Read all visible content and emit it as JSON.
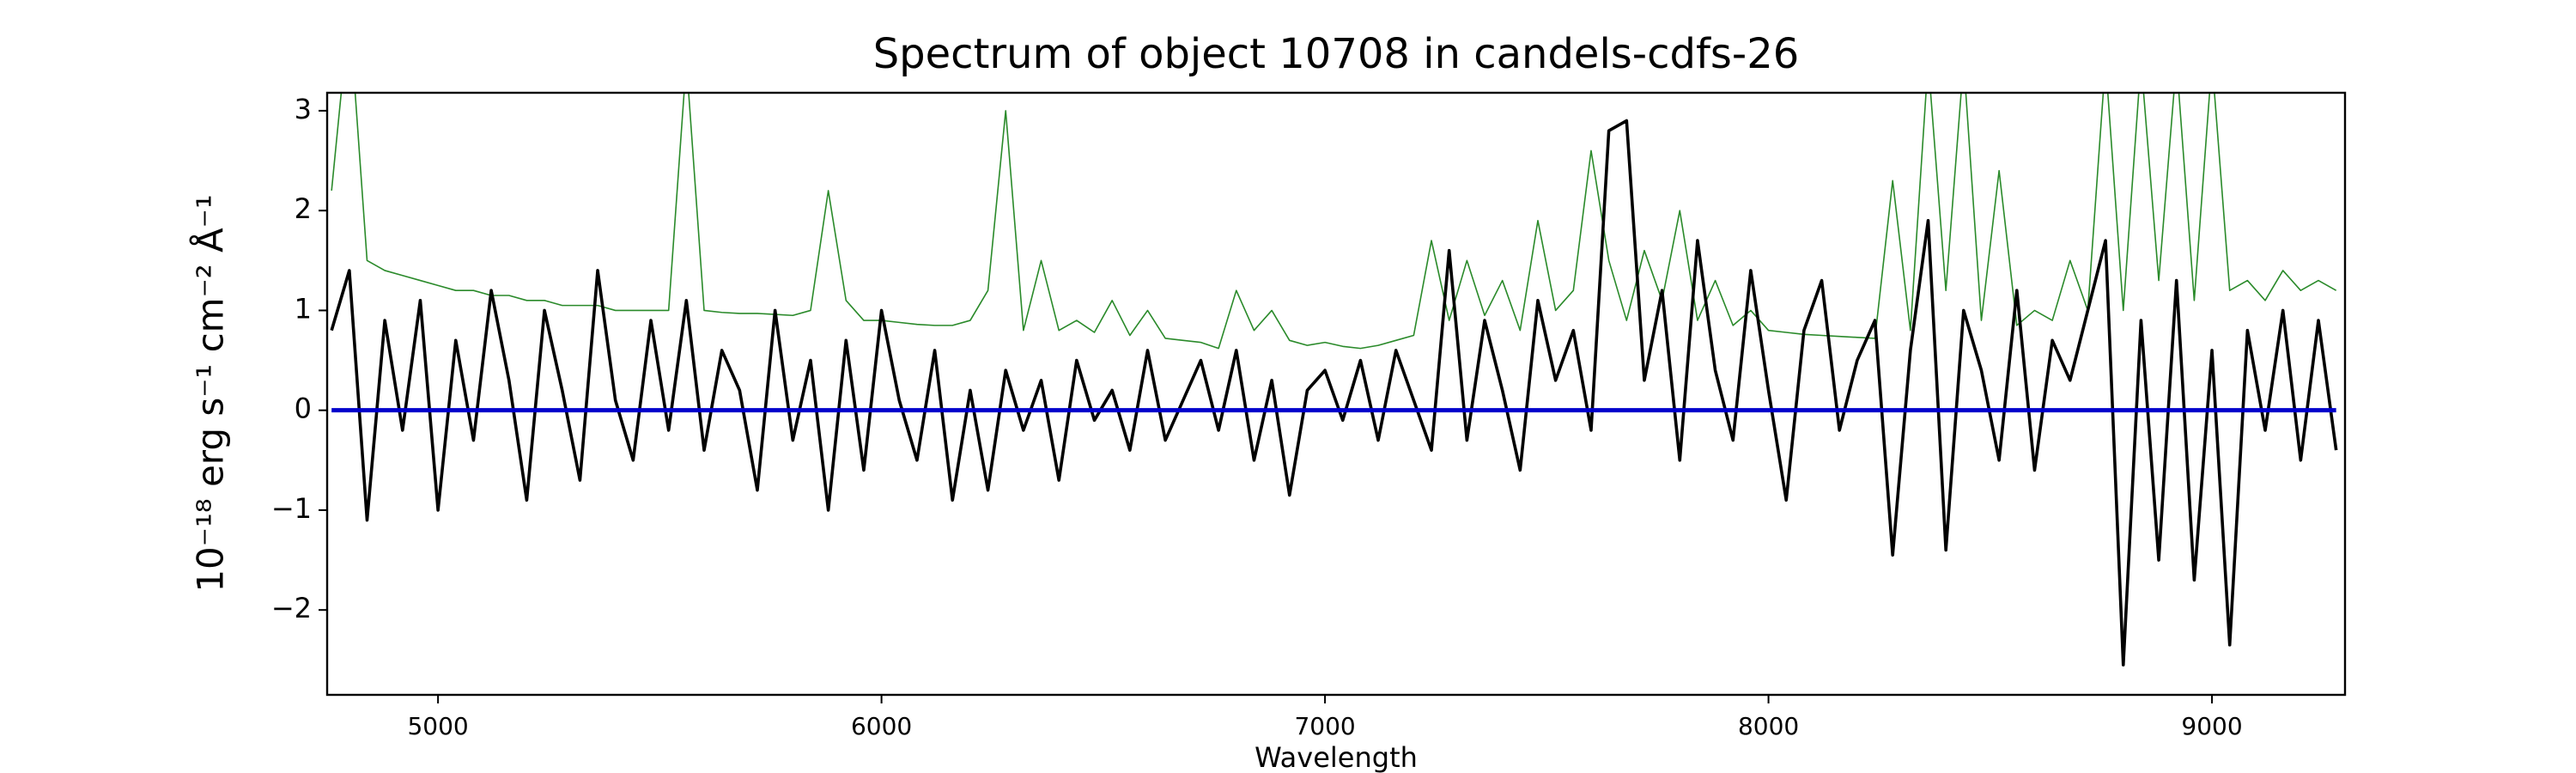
{
  "chart_data": {
    "type": "line",
    "title": "Spectrum of object 10708 in candels-cdfs-26",
    "xlabel": "Wavelength",
    "ylabel": "10⁻¹⁸ erg s⁻¹ cm⁻² Å⁻¹",
    "xlim": [
      4750,
      9300
    ],
    "ylim": [
      -2.85,
      3.18
    ],
    "xticks": [
      5000,
      6000,
      7000,
      8000,
      9000
    ],
    "yticks": [
      {
        "value": -2,
        "label": "−2"
      },
      {
        "value": -1,
        "label": "−1"
      },
      0,
      1,
      2,
      3
    ],
    "x": [
      4760,
      4800,
      4840,
      4880,
      4920,
      4960,
      5000,
      5040,
      5080,
      5120,
      5160,
      5200,
      5240,
      5280,
      5320,
      5360,
      5400,
      5440,
      5480,
      5520,
      5560,
      5600,
      5640,
      5680,
      5720,
      5760,
      5800,
      5840,
      5880,
      5920,
      5960,
      6000,
      6040,
      6080,
      6120,
      6160,
      6200,
      6240,
      6280,
      6320,
      6360,
      6400,
      6440,
      6480,
      6520,
      6560,
      6600,
      6640,
      6680,
      6720,
      6760,
      6800,
      6840,
      6880,
      6920,
      6960,
      7000,
      7040,
      7080,
      7120,
      7160,
      7200,
      7240,
      7280,
      7320,
      7360,
      7400,
      7440,
      7480,
      7520,
      7560,
      7600,
      7640,
      7680,
      7720,
      7760,
      7800,
      7840,
      7880,
      7920,
      7960,
      8000,
      8040,
      8080,
      8120,
      8160,
      8200,
      8240,
      8280,
      8320,
      8360,
      8400,
      8440,
      8480,
      8520,
      8560,
      8600,
      8640,
      8680,
      8720,
      8760,
      8800,
      8840,
      8880,
      8920,
      8960,
      9000,
      9040,
      9080,
      9120,
      9160,
      9200,
      9240,
      9280
    ],
    "series": [
      {
        "color": "#2a8a2a",
        "values": [
          2.2,
          4.0,
          1.5,
          1.4,
          1.35,
          1.3,
          1.25,
          1.2,
          1.2,
          1.15,
          1.15,
          1.1,
          1.1,
          1.05,
          1.05,
          1.05,
          1.0,
          1.0,
          1.0,
          1.0,
          3.5,
          1.0,
          0.98,
          0.97,
          0.97,
          0.96,
          0.95,
          1.0,
          2.2,
          1.1,
          0.9,
          0.9,
          0.88,
          0.86,
          0.85,
          0.85,
          0.9,
          1.2,
          3.0,
          0.8,
          1.5,
          0.8,
          0.9,
          0.78,
          1.1,
          0.75,
          1.0,
          0.72,
          0.7,
          0.68,
          0.62,
          1.2,
          0.8,
          1.0,
          0.7,
          0.65,
          0.68,
          0.64,
          0.62,
          0.65,
          0.7,
          0.75,
          1.7,
          0.9,
          1.5,
          0.95,
          1.3,
          0.8,
          1.9,
          1.0,
          1.2,
          2.6,
          1.5,
          0.9,
          1.6,
          1.1,
          2.0,
          0.9,
          1.3,
          0.85,
          1.0,
          0.8,
          0.78,
          0.76,
          0.75,
          0.74,
          0.73,
          0.72,
          2.3,
          0.8,
          3.5,
          1.2,
          3.5,
          0.9,
          2.4,
          0.85,
          1.0,
          0.9,
          1.5,
          1.0,
          3.5,
          1.0,
          3.5,
          1.3,
          3.5,
          1.1,
          3.5,
          1.2,
          1.3,
          1.1,
          1.4,
          1.2,
          1.3,
          1.2
        ],
        "width": 1.6
      },
      {
        "color": "#000000",
        "values": [
          0.8,
          1.4,
          -1.1,
          0.9,
          -0.2,
          1.1,
          -1.0,
          0.7,
          -0.3,
          1.2,
          0.3,
          -0.9,
          1.0,
          0.2,
          -0.7,
          1.4,
          0.1,
          -0.5,
          0.9,
          -0.2,
          1.1,
          -0.4,
          0.6,
          0.2,
          -0.8,
          1.0,
          -0.3,
          0.5,
          -1.0,
          0.7,
          -0.6,
          1.0,
          0.1,
          -0.5,
          0.6,
          -0.9,
          0.2,
          -0.8,
          0.4,
          -0.2,
          0.3,
          -0.7,
          0.5,
          -0.1,
          0.2,
          -0.4,
          0.6,
          -0.3,
          0.1,
          0.5,
          -0.2,
          0.6,
          -0.5,
          0.3,
          -0.85,
          0.2,
          0.4,
          -0.1,
          0.5,
          -0.3,
          0.6,
          0.1,
          -0.4,
          1.6,
          -0.3,
          0.9,
          0.2,
          -0.6,
          1.1,
          0.3,
          0.8,
          -0.2,
          2.8,
          2.9,
          0.3,
          1.2,
          -0.5,
          1.7,
          0.4,
          -0.3,
          1.4,
          0.2,
          -0.9,
          0.8,
          1.3,
          -0.2,
          0.5,
          0.9,
          -1.45,
          0.6,
          1.9,
          -1.4,
          1.0,
          0.4,
          -0.5,
          1.2,
          -0.6,
          0.7,
          0.3,
          1.0,
          1.7,
          -2.55,
          0.9,
          -1.5,
          1.3,
          -1.7,
          0.6,
          -2.35,
          0.8,
          -0.2,
          1.0,
          -0.5,
          0.9,
          -0.4
        ],
        "width": 3.6
      },
      {
        "color": "#0000cc",
        "values": [
          0,
          0,
          0,
          0,
          0,
          0,
          0,
          0,
          0,
          0,
          0,
          0,
          0,
          0,
          0,
          0,
          0,
          0,
          0,
          0,
          0,
          0,
          0,
          0,
          0,
          0,
          0,
          0,
          0,
          0,
          0,
          0,
          0,
          0,
          0,
          0,
          0,
          0,
          0,
          0,
          0,
          0,
          0,
          0,
          0,
          0,
          0,
          0,
          0,
          0,
          0,
          0,
          0,
          0,
          0,
          0,
          0,
          0,
          0,
          0,
          0,
          0,
          0,
          0,
          0,
          0,
          0,
          0,
          0,
          0,
          0,
          0,
          0,
          0,
          0,
          0,
          0,
          0,
          0,
          0,
          0,
          0,
          0,
          0,
          0,
          0,
          0,
          0,
          0,
          0,
          0,
          0,
          0,
          0,
          0,
          0,
          0,
          0,
          0,
          0,
          0,
          0,
          0,
          0,
          0,
          0,
          0,
          0,
          0,
          0,
          0,
          0,
          0,
          0
        ],
        "width": 5
      }
    ]
  }
}
